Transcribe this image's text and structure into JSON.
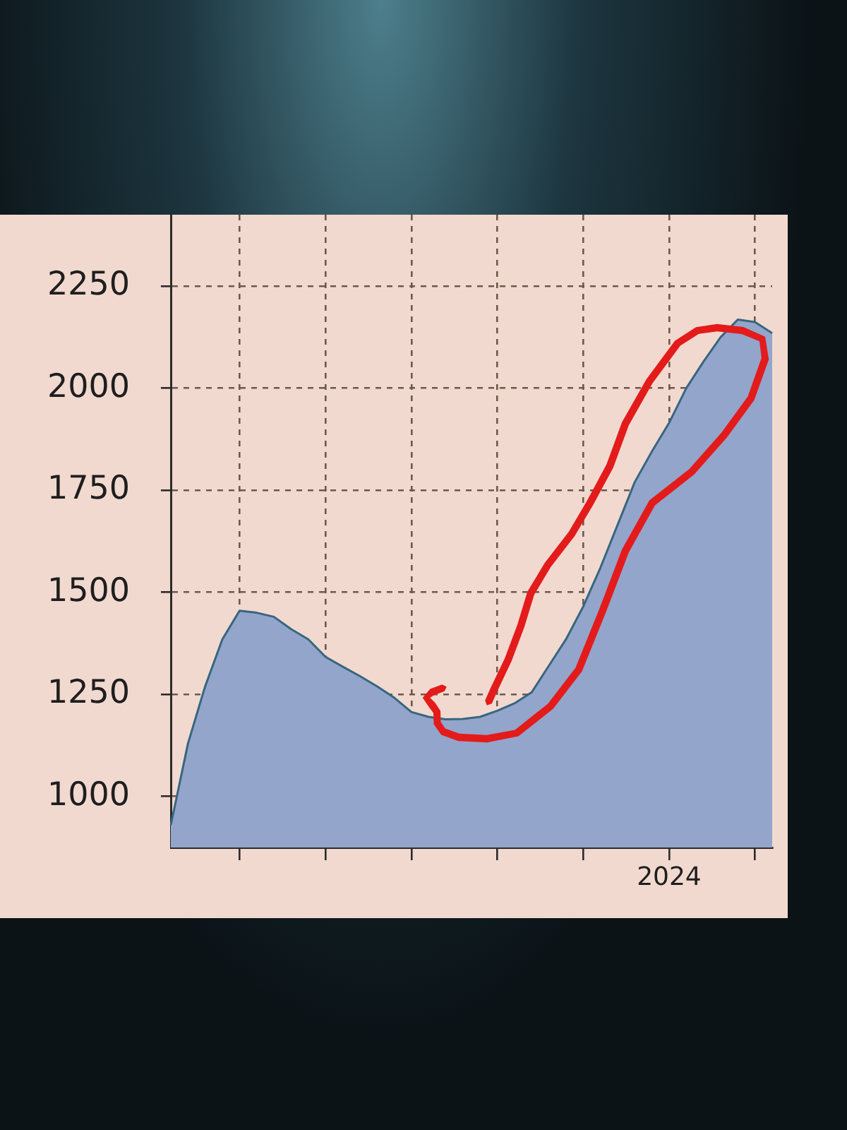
{
  "chart_data": {
    "type": "area",
    "categories": [
      null,
      null,
      null,
      null,
      null,
      null,
      null,
      null,
      null,
      null,
      null,
      null,
      null,
      null,
      null,
      null,
      null,
      null,
      null,
      null,
      null,
      null,
      null,
      null,
      null,
      null,
      null,
      null,
      null,
      "2024",
      null,
      null,
      null,
      null,
      null,
      null
    ],
    "values": [
      930,
      1130,
      1270,
      1385,
      1455,
      1450,
      1440,
      1410,
      1385,
      1342,
      1318,
      1295,
      1270,
      1242,
      1207,
      1195,
      1189,
      1190,
      1195,
      1210,
      1228,
      1255,
      1320,
      1385,
      1465,
      1560,
      1665,
      1770,
      1845,
      1915,
      2000,
      2065,
      2125,
      2168,
      2162,
      2135
    ],
    "color": "#93a5cb",
    "ylim": [
      875,
      2425
    ],
    "yticks": [
      1000,
      1250,
      1500,
      1750,
      2000,
      2250
    ],
    "grid": true
  }
}
